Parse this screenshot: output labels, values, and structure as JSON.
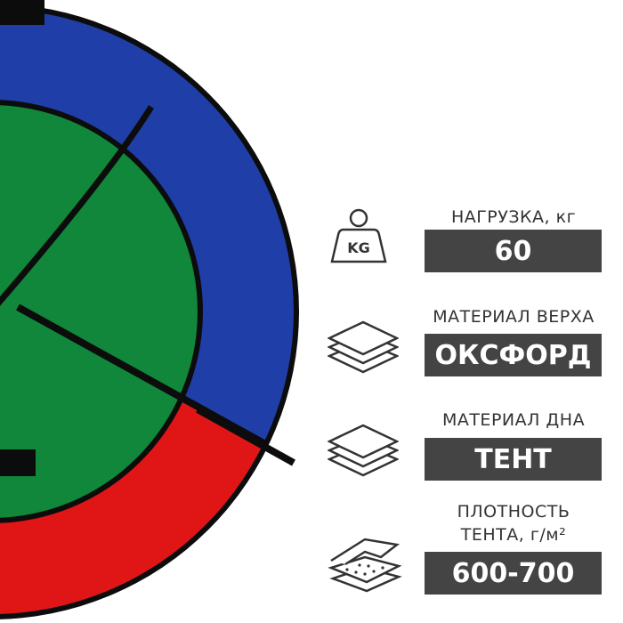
{
  "product": {
    "colors": {
      "outer_top": "#1f3ea8",
      "outer_bottom": "#e01616",
      "center": "#10873a",
      "trim": "#0c0c0c"
    }
  },
  "specs": [
    {
      "icon": "weight-kg-icon",
      "icon_text": "KG",
      "label": "НАГРУЗКА, кг",
      "value": "60"
    },
    {
      "icon": "layers-icon",
      "label": "МАТЕРИАЛ ВЕРХА",
      "value": "ОКСФОРД"
    },
    {
      "icon": "layers-icon",
      "label": "МАТЕРИАЛ ДНА",
      "value": "ТЕНТ"
    },
    {
      "icon": "fabric-density-icon",
      "label_line1": "ПЛОТНОСТЬ",
      "label_line2": "ТЕНТА, г/м²",
      "value": "600-700"
    }
  ],
  "theme": {
    "box_bg": "#444444",
    "text": "#333333"
  }
}
